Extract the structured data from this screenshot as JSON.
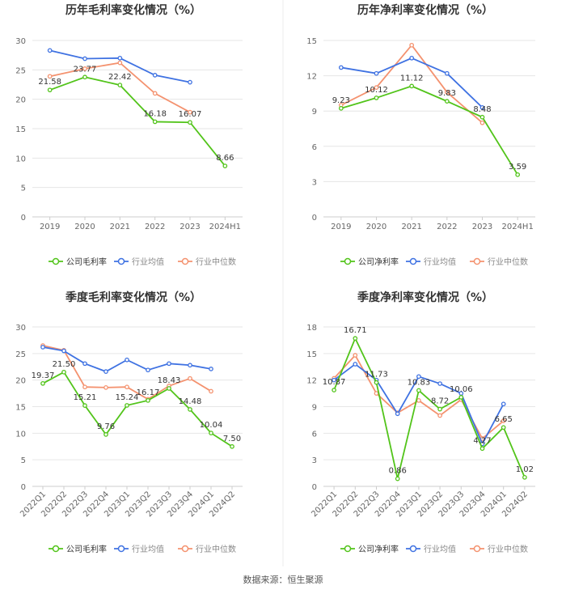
{
  "source": "数据来源：恒生聚源",
  "colors": {
    "company": "#52c41a",
    "industry_avg": "#3f72e2",
    "industry_median": "#f4926f",
    "grid": "#e6e6e6",
    "axis_text": "#666666",
    "title": "#333333"
  },
  "chart_data": [
    {
      "type": "line",
      "title": "历年毛利率变化情况（%）",
      "categories": [
        "2019",
        "2020",
        "2021",
        "2022",
        "2023",
        "2024H1"
      ],
      "ylim": [
        0,
        30
      ],
      "yticks": [
        0,
        5,
        10,
        15,
        20,
        25,
        30
      ],
      "series": [
        {
          "name": "公司毛利率",
          "values": [
            21.58,
            23.77,
            22.42,
            16.18,
            16.07,
            8.66
          ],
          "labels": [
            "21.58",
            "23.77",
            "22.42",
            "16.18",
            "16.07",
            "8.66"
          ]
        },
        {
          "name": "行业均值",
          "values": [
            28.3,
            26.9,
            27.0,
            24.1,
            22.9,
            null
          ]
        },
        {
          "name": "行业中位数",
          "values": [
            23.9,
            25.2,
            26.2,
            21.0,
            17.8,
            null
          ]
        }
      ]
    },
    {
      "type": "line",
      "title": "历年净利率变化情况（%）",
      "categories": [
        "2019",
        "2020",
        "2021",
        "2022",
        "2023",
        "2024H1"
      ],
      "ylim": [
        0,
        15
      ],
      "yticks": [
        0,
        3,
        6,
        9,
        12,
        15
      ],
      "series": [
        {
          "name": "公司净利率",
          "values": [
            9.23,
            10.12,
            11.12,
            9.83,
            8.48,
            3.59
          ],
          "labels": [
            "9.23",
            "10.12",
            "11.12",
            "9.83",
            "8.48",
            "3.59"
          ]
        },
        {
          "name": "行业均值",
          "values": [
            12.7,
            12.2,
            13.5,
            12.2,
            9.3,
            null
          ]
        },
        {
          "name": "行业中位数",
          "values": [
            9.5,
            11.0,
            14.6,
            10.6,
            8.0,
            null
          ]
        }
      ]
    },
    {
      "type": "line",
      "title": "季度毛利率变化情况（%）",
      "categories": [
        "2022Q1",
        "2022Q2",
        "2022Q3",
        "2022Q4",
        "2023Q1",
        "2023Q2",
        "2023Q3",
        "2023Q4",
        "2024Q1",
        "2024Q2"
      ],
      "ylim": [
        0,
        30
      ],
      "yticks": [
        0,
        5,
        10,
        15,
        20,
        25,
        30
      ],
      "series": [
        {
          "name": "公司毛利率",
          "values": [
            19.37,
            21.5,
            15.21,
            9.76,
            15.24,
            16.17,
            18.43,
            14.48,
            10.04,
            7.5
          ],
          "labels": [
            "19.37",
            "21.50",
            "15.21",
            "9.76",
            "15.24",
            "16.17",
            "18.43",
            "14.48",
            "10.04",
            "7.50"
          ]
        },
        {
          "name": "行业均值",
          "values": [
            26.2,
            25.5,
            23.1,
            21.6,
            23.8,
            21.9,
            23.1,
            22.8,
            22.1,
            null
          ]
        },
        {
          "name": "行业中位数",
          "values": [
            26.5,
            25.6,
            18.7,
            18.6,
            18.7,
            16.4,
            18.9,
            20.3,
            17.9,
            null
          ]
        }
      ]
    },
    {
      "type": "line",
      "title": "季度净利率变化情况（%）",
      "categories": [
        "2022Q1",
        "2022Q2",
        "2022Q3",
        "2022Q4",
        "2023Q1",
        "2023Q2",
        "2023Q3",
        "2023Q4",
        "2024Q1",
        "2024Q2"
      ],
      "ylim": [
        0,
        18
      ],
      "yticks": [
        0,
        3,
        6,
        9,
        12,
        15,
        18
      ],
      "series": [
        {
          "name": "公司净利率",
          "values": [
            10.87,
            16.71,
            11.73,
            0.86,
            10.83,
            8.72,
            10.06,
            4.27,
            6.65,
            1.02
          ],
          "labels": [
            "10.87",
            "16.71",
            "11.73",
            "0.86",
            "10.83",
            "8.72",
            "10.06",
            "4.27",
            "6.65",
            "1.02"
          ]
        },
        {
          "name": "行业均值",
          "values": [
            12.0,
            13.8,
            12.0,
            8.2,
            12.4,
            11.6,
            10.5,
            4.8,
            9.3,
            null
          ]
        },
        {
          "name": "行业中位数",
          "values": [
            12.2,
            14.8,
            10.5,
            8.3,
            9.7,
            8.0,
            9.8,
            5.4,
            7.4,
            null
          ]
        }
      ]
    }
  ]
}
